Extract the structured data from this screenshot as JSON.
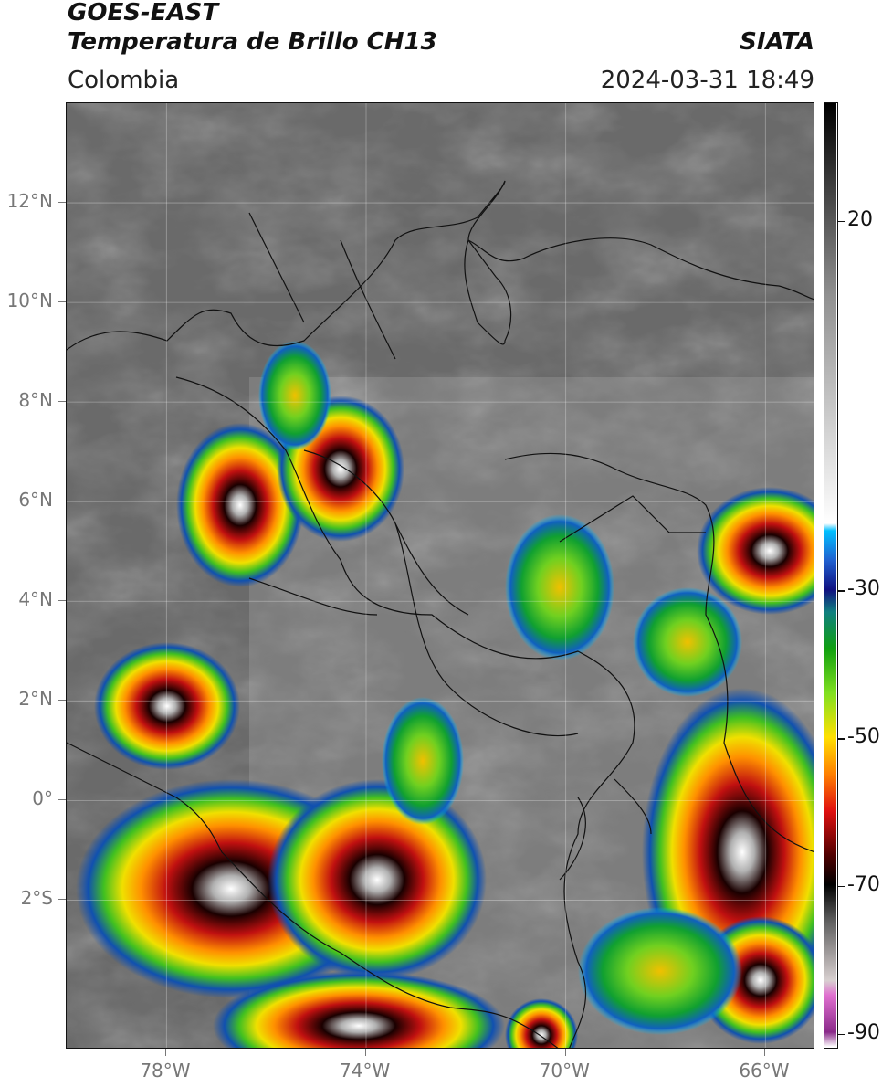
{
  "header": {
    "satellite": "GOES-EAST",
    "product": "Temperatura de Brillo CH13",
    "org": "SIATA",
    "region": "Colombia",
    "datetime": "2024-03-31 18:49"
  },
  "map": {
    "lat_labels": [
      "12°N",
      "10°N",
      "8°N",
      "6°N",
      "4°N",
      "2°N",
      "0°",
      "2°S"
    ],
    "lon_labels": [
      "78°W",
      "74°W",
      "70°W",
      "66°W"
    ],
    "lat_values": [
      12,
      10,
      8,
      6,
      4,
      2,
      0,
      -2
    ],
    "lon_values": [
      -78,
      -74,
      -70,
      -66
    ],
    "lat_range": [
      -5,
      14
    ],
    "lon_range": [
      -80,
      -65
    ]
  },
  "colorbar": {
    "labels": [
      "20",
      "-30",
      "-50",
      "-70",
      "-90"
    ],
    "values": [
      20,
      -30,
      -50,
      -70,
      -90
    ],
    "range": [
      -92,
      36
    ],
    "stops": [
      {
        "v": -92,
        "c": "#ffffff"
      },
      {
        "v": -90,
        "c": "#8a2a8a"
      },
      {
        "v": -85,
        "c": "#e070d0"
      },
      {
        "v": -83,
        "c": "#d8d0d0"
      },
      {
        "v": -75,
        "c": "#606060"
      },
      {
        "v": -70,
        "c": "#000000"
      },
      {
        "v": -66,
        "c": "#500000"
      },
      {
        "v": -60,
        "c": "#e01010"
      },
      {
        "v": -55,
        "c": "#ff8000"
      },
      {
        "v": -50,
        "c": "#ffe000"
      },
      {
        "v": -44,
        "c": "#80e020"
      },
      {
        "v": -38,
        "c": "#10a010"
      },
      {
        "v": -33,
        "c": "#108080"
      },
      {
        "v": -30,
        "c": "#101080"
      },
      {
        "v": -26,
        "c": "#2060d0"
      },
      {
        "v": -22,
        "c": "#00c0ff"
      },
      {
        "v": -21,
        "c": "#ffffff"
      },
      {
        "v": 10,
        "c": "#909090"
      },
      {
        "v": 36,
        "c": "#000000"
      }
    ]
  }
}
